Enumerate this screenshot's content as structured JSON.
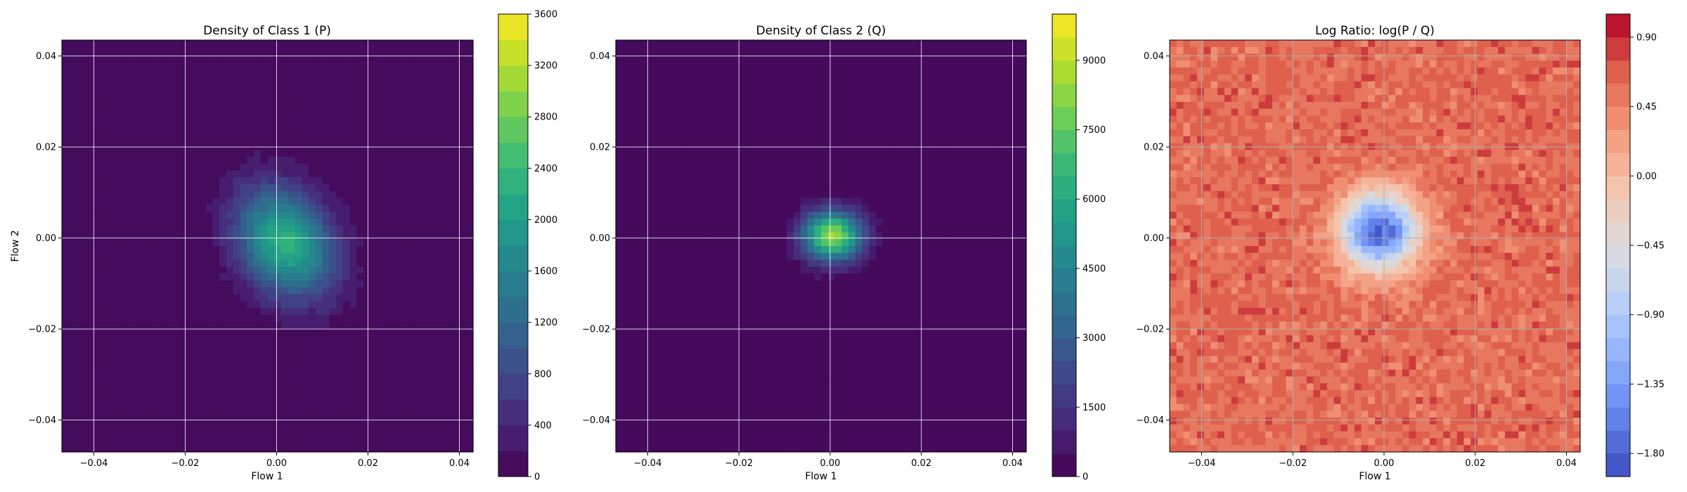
{
  "chart_data": [
    {
      "type": "heatmap",
      "title": "Density of Class 1 (P)",
      "xlabel": "Flow 1",
      "ylabel": "Flow 2",
      "xlim": [
        -0.047,
        0.043
      ],
      "ylim": [
        -0.047,
        0.0435
      ],
      "xticks": [
        -0.04,
        -0.02,
        0.0,
        0.02,
        0.04
      ],
      "yticks": [
        -0.04,
        -0.02,
        0.0,
        0.02,
        0.04
      ],
      "xtick_labels": [
        "−0.04",
        "−0.02",
        "0.00",
        "0.02",
        "0.04"
      ],
      "ytick_labels": [
        "−0.04",
        "−0.02",
        "0.00",
        "0.02",
        "0.04"
      ],
      "grid": true,
      "colormap": "viridis",
      "colorbar": {
        "min": 0,
        "max": 3600,
        "levels": 18,
        "ticks": [
          0,
          400,
          800,
          1200,
          1600,
          2000,
          2400,
          2800,
          3200,
          3600
        ],
        "tick_labels": [
          "0",
          "400",
          "800",
          "1200",
          "1600",
          "2000",
          "2400",
          "2800",
          "3200",
          "3600"
        ]
      },
      "density_model": {
        "center": [
          0.002,
          -0.001
        ],
        "sigma_x": 0.0075,
        "sigma_y": 0.0085,
        "rho": -0.25,
        "peak": 2300
      }
    },
    {
      "type": "heatmap",
      "title": "Density of Class 2 (Q)",
      "xlabel": "Flow 1",
      "ylabel": "",
      "xlim": [
        -0.047,
        0.043
      ],
      "ylim": [
        -0.047,
        0.0435
      ],
      "xticks": [
        -0.04,
        -0.02,
        0.0,
        0.02,
        0.04
      ],
      "yticks": [
        -0.04,
        -0.02,
        0.0,
        0.02,
        0.04
      ],
      "xtick_labels": [
        "−0.04",
        "−0.02",
        "0.00",
        "0.02",
        "0.04"
      ],
      "ytick_labels": [
        "−0.04",
        "−0.02",
        "0.00",
        "0.02",
        "0.04"
      ],
      "grid": true,
      "colormap": "viridis",
      "colorbar": {
        "min": 0,
        "max": 10000,
        "levels": 20,
        "ticks": [
          0,
          1500,
          3000,
          4500,
          6000,
          7500,
          9000
        ],
        "tick_labels": [
          "0",
          "1500",
          "3000",
          "4500",
          "6000",
          "7500",
          "9000"
        ]
      },
      "density_model": {
        "center": [
          0.0005,
          0.0005
        ],
        "sigma_x": 0.0045,
        "sigma_y": 0.0038,
        "rho": 0.0,
        "peak": 8500
      }
    },
    {
      "type": "heatmap",
      "title": "Log Ratio: log(P / Q)",
      "xlabel": "Flow 1",
      "ylabel": "",
      "xlim": [
        -0.047,
        0.043
      ],
      "ylim": [
        -0.047,
        0.0435
      ],
      "xticks": [
        -0.04,
        -0.02,
        0.0,
        0.02,
        0.04
      ],
      "yticks": [
        -0.04,
        -0.02,
        0.0,
        0.02,
        0.04
      ],
      "xtick_labels": [
        "−0.04",
        "−0.02",
        "0.00",
        "0.02",
        "0.04"
      ],
      "ytick_labels": [
        "−0.04",
        "−0.02",
        "0.00",
        "0.02",
        "0.04"
      ],
      "grid": true,
      "colormap": "coolwarm",
      "colorbar": {
        "min": -1.95,
        "max": 1.05,
        "levels": 20,
        "ticks": [
          -1.8,
          -1.35,
          -0.9,
          -0.45,
          0.0,
          0.45,
          0.9
        ],
        "tick_labels": [
          "−1.80",
          "−1.35",
          "−0.90",
          "−0.45",
          "0.00",
          "0.45",
          "0.90"
        ]
      },
      "density_model": {
        "center": [
          -0.001,
          0.0015
        ],
        "outer_value": 0.6,
        "core_value": -1.8,
        "core_sigma": 0.006
      }
    }
  ]
}
